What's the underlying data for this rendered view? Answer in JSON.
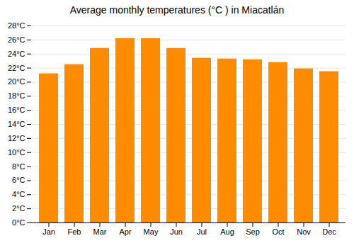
{
  "chart_data": {
    "type": "bar",
    "title": "Average monthly temperatures (°C ) in Miacatlán",
    "categories": [
      "Jan",
      "Feb",
      "Mar",
      "Apr",
      "May",
      "Jun",
      "Jul",
      "Aug",
      "Sep",
      "Oct",
      "Nov",
      "Dec"
    ],
    "values": [
      21.2,
      22.5,
      24.8,
      26.2,
      26.2,
      24.8,
      23.4,
      23.3,
      23.2,
      22.8,
      21.9,
      21.5
    ],
    "color": "#FF8C00",
    "ylim": [
      0,
      28
    ],
    "yticks": [
      {
        "value": 0,
        "label": "0°C"
      },
      {
        "value": 2,
        "label": "2°C"
      },
      {
        "value": 4,
        "label": "4°C"
      },
      {
        "value": 6,
        "label": "6°C"
      },
      {
        "value": 8,
        "label": "8°C"
      },
      {
        "value": 10,
        "label": "10°C"
      },
      {
        "value": 12,
        "label": "12°C"
      },
      {
        "value": 14,
        "label": "14°C"
      },
      {
        "value": 16,
        "label": "16°C"
      },
      {
        "value": 18,
        "label": "18°C"
      },
      {
        "value": 20,
        "label": "20°C"
      },
      {
        "value": 22,
        "label": "22°C"
      },
      {
        "value": 24,
        "label": "24°C"
      },
      {
        "value": 26,
        "label": "26°C"
      },
      {
        "value": 28,
        "label": "28°C"
      }
    ],
    "grid": true
  }
}
